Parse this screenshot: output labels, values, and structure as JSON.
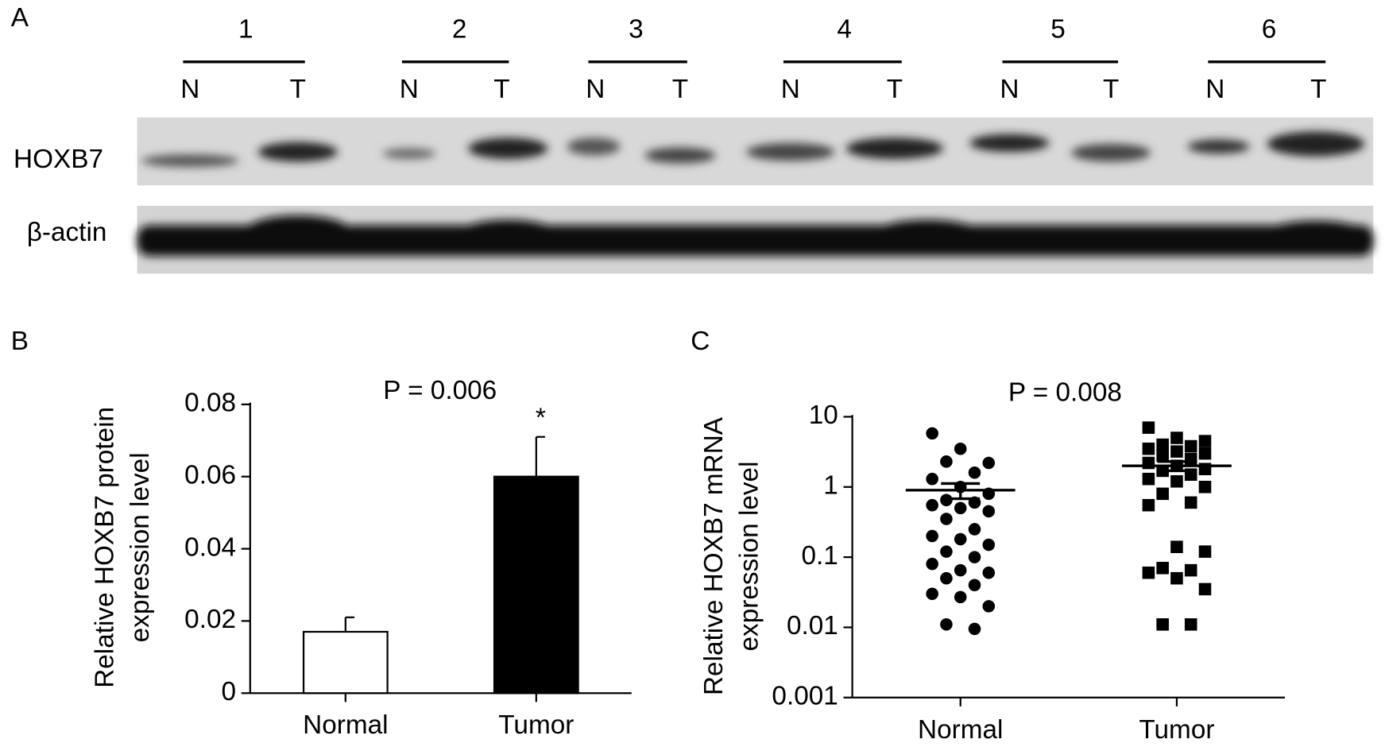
{
  "blot": {
    "label": "A",
    "pairs": [
      "1",
      "2",
      "3",
      "4",
      "5",
      "6"
    ],
    "lanes": [
      "N",
      "T",
      "N",
      "T",
      "N",
      "T",
      "N",
      "T",
      "N",
      "T",
      "N",
      "T"
    ],
    "rows": [
      "HOXB7",
      "β-actin"
    ]
  },
  "chart_data": [
    {
      "type": "bar",
      "panel_label": "B",
      "title": "P = 0.006",
      "ylabel": [
        "Relative HOXB7 protein",
        "expression level"
      ],
      "categories": [
        "Normal",
        "Tumor"
      ],
      "values": [
        0.017,
        0.06
      ],
      "errors": [
        0.004,
        0.011
      ],
      "colors": [
        "#ffffff",
        "#000000"
      ],
      "significance_label": "*",
      "ylim": [
        0,
        0.08
      ],
      "yticks": [
        0,
        0.02,
        0.04,
        0.06,
        0.08
      ]
    },
    {
      "type": "scatter",
      "panel_label": "C",
      "title": "P = 0.008",
      "ylabel": [
        "Relative HOXB7 mRNA",
        "expression level"
      ],
      "categories": [
        "Normal",
        "Tumor"
      ],
      "log_y": true,
      "series": [
        {
          "marker": "circle",
          "color": "#000000",
          "values": [
            5.8,
            3.5,
            2.2,
            2.3,
            1.6,
            1.3,
            1.0,
            0.8,
            0.65,
            0.6,
            0.55,
            0.5,
            0.45,
            0.35,
            0.25,
            0.2,
            0.18,
            0.15,
            0.12,
            0.1,
            0.08,
            0.065,
            0.06,
            0.05,
            0.04,
            0.03,
            0.027,
            0.02,
            0.011,
            0.0095
          ]
        },
        {
          "marker": "square",
          "color": "#000000",
          "values": [
            7.0,
            5.0,
            4.5,
            4.0,
            3.8,
            3.5,
            3.2,
            3.0,
            2.8,
            2.5,
            2.2,
            2.0,
            1.8,
            1.7,
            1.5,
            1.3,
            1.2,
            1.0,
            0.8,
            0.6,
            0.55,
            0.14,
            0.12,
            0.07,
            0.065,
            0.06,
            0.05,
            0.035,
            0.011,
            0.011
          ]
        }
      ],
      "means": [
        0.9,
        2.0
      ],
      "sem": [
        0.22,
        0.3
      ],
      "ylim": [
        0.001,
        10
      ],
      "yticks": [
        0.001,
        0.01,
        0.1,
        1,
        10
      ]
    }
  ]
}
